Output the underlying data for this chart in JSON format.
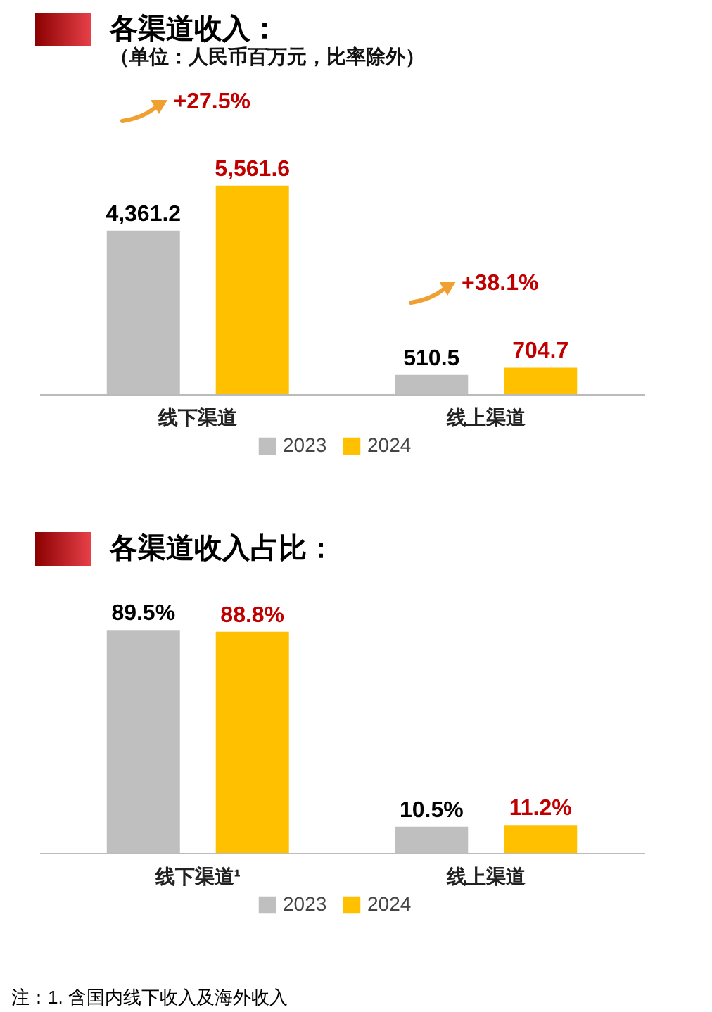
{
  "chart_data": [
    {
      "type": "bar",
      "title": "各渠道收入：",
      "subtitle": "（单位：人民币百万元，比率除外）",
      "categories": [
        "线下渠道",
        "线上渠道"
      ],
      "legend": "bottom",
      "series": [
        {
          "name": "2023",
          "color": "#bfbfbf",
          "values": [
            4361.2,
            510.5
          ],
          "value_labels": [
            "4,361.2",
            "510.5"
          ]
        },
        {
          "name": "2024",
          "color": "#ffc000",
          "values": [
            5561.6,
            704.7
          ],
          "value_labels": [
            "5,561.6",
            "704.7"
          ]
        }
      ],
      "annotations": [
        "+27.5%",
        "+38.1%"
      ]
    },
    {
      "type": "bar",
      "title": "各渠道收入占比：",
      "categories": [
        "线下渠道¹",
        "线上渠道"
      ],
      "legend": "bottom",
      "series": [
        {
          "name": "2023",
          "color": "#bfbfbf",
          "values": [
            89.5,
            10.5
          ],
          "value_labels": [
            "89.5%",
            "10.5%"
          ]
        },
        {
          "name": "2024",
          "color": "#ffc000",
          "values": [
            88.8,
            11.2
          ],
          "value_labels": [
            "88.8%",
            "11.2%"
          ]
        }
      ],
      "annotations": [
        "注：1. 含国内线下收入及海外收入"
      ]
    }
  ]
}
